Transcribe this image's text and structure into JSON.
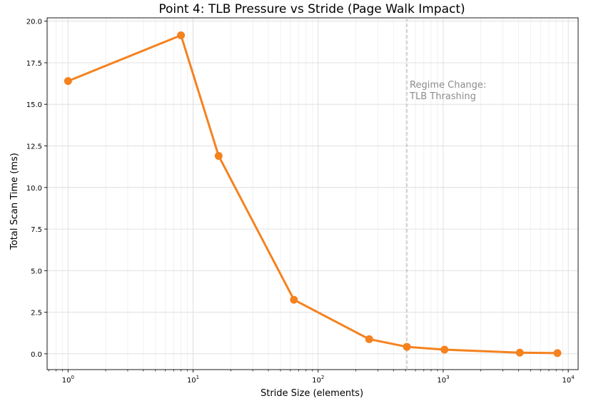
{
  "chart_data": {
    "type": "line",
    "title": "Point 4: TLB Pressure vs Stride (Page Walk Impact)",
    "xlabel": "Stride Size (elements)",
    "ylabel": "Total Scan Time (ms)",
    "x_scale": "log",
    "xlim": [
      0.68,
      12000
    ],
    "ylim": [
      -0.95,
      20.2
    ],
    "grid": true,
    "x_ticks": [
      {
        "value": 1,
        "base": "10",
        "exp": "0"
      },
      {
        "value": 10,
        "base": "10",
        "exp": "1"
      },
      {
        "value": 100,
        "base": "10",
        "exp": "2"
      },
      {
        "value": 1000,
        "base": "10",
        "exp": "3"
      },
      {
        "value": 10000,
        "base": "10",
        "exp": "4"
      }
    ],
    "y_ticks": [
      0.0,
      2.5,
      5.0,
      7.5,
      10.0,
      12.5,
      15.0,
      17.5,
      20.0
    ],
    "y_tick_labels": [
      "0.0",
      "2.5",
      "5.0",
      "7.5",
      "10.0",
      "12.5",
      "15.0",
      "17.5",
      "20.0"
    ],
    "series": [
      {
        "color": "#f5821f",
        "x": [
          1,
          8,
          16,
          64,
          256,
          512,
          1024,
          4096,
          8192
        ],
        "y": [
          16.4,
          19.15,
          11.9,
          3.25,
          0.88,
          0.42,
          0.25,
          0.07,
          0.04
        ]
      }
    ],
    "vline": {
      "x": 512,
      "color": "#bbbbbb",
      "style": "dashed"
    },
    "annotation": {
      "lines": [
        "Regime Change:",
        "TLB Thrashing"
      ],
      "x": 540,
      "y": 16.0,
      "color": "#8c8c8c"
    }
  }
}
